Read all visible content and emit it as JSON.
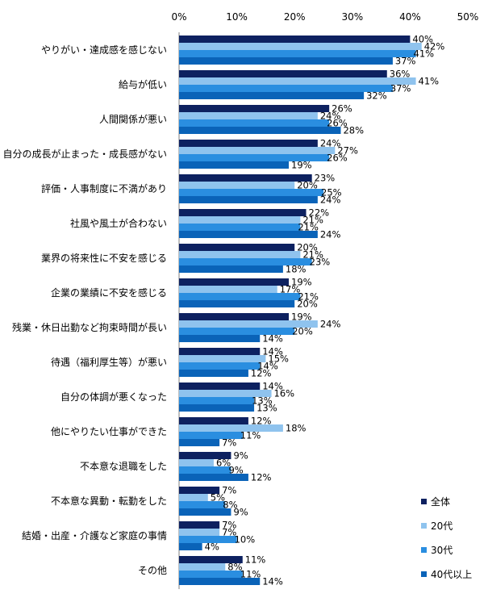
{
  "chart_data": {
    "type": "bar",
    "orientation": "horizontal",
    "title": "",
    "xlabel": "",
    "ylabel": "",
    "xlim": [
      0,
      50
    ],
    "tick_values": [
      0,
      10,
      20,
      30,
      40,
      50
    ],
    "tick_labels": [
      "0%",
      "10%",
      "20%",
      "30%",
      "40%",
      "50%"
    ],
    "grid": false,
    "legend_position": "bottom-right",
    "categories": [
      "やりがい・達成感を感じない",
      "給与が低い",
      "人間関係が悪い",
      "自分の成長が止まった・成長感がない",
      "評価・人事制度に不満があり",
      "社風や風土が合わない",
      "業界の将来性に不安を感じる",
      "企業の業績に不安を感じる",
      "残業・休日出勤など拘束時間が長い",
      "待遇（福利厚生等）が悪い",
      "自分の体調が悪くなった",
      "他にやりたい仕事ができた",
      "不本意な退職をした",
      "不本意な異動・転勤をした",
      "結婚・出産・介護など家庭の事情",
      "その他"
    ],
    "series": [
      {
        "name": "全体",
        "color": "#0d2160",
        "values": [
          40,
          36,
          26,
          24,
          23,
          22,
          20,
          19,
          19,
          14,
          14,
          12,
          9,
          7,
          7,
          11
        ]
      },
      {
        "name": "20代",
        "color": "#8fc3ee",
        "values": [
          42,
          41,
          24,
          27,
          20,
          21,
          21,
          17,
          24,
          15,
          16,
          18,
          6,
          5,
          7,
          8
        ]
      },
      {
        "name": "30代",
        "color": "#2a8ee0",
        "values": [
          41,
          37,
          26,
          26,
          25,
          21,
          23,
          21,
          20,
          14,
          13,
          11,
          9,
          8,
          10,
          11
        ]
      },
      {
        "name": "40代以上",
        "color": "#0a63b8",
        "values": [
          37,
          32,
          28,
          19,
          24,
          24,
          18,
          20,
          14,
          12,
          13,
          7,
          12,
          9,
          4,
          14
        ]
      }
    ],
    "value_suffix": "%"
  }
}
